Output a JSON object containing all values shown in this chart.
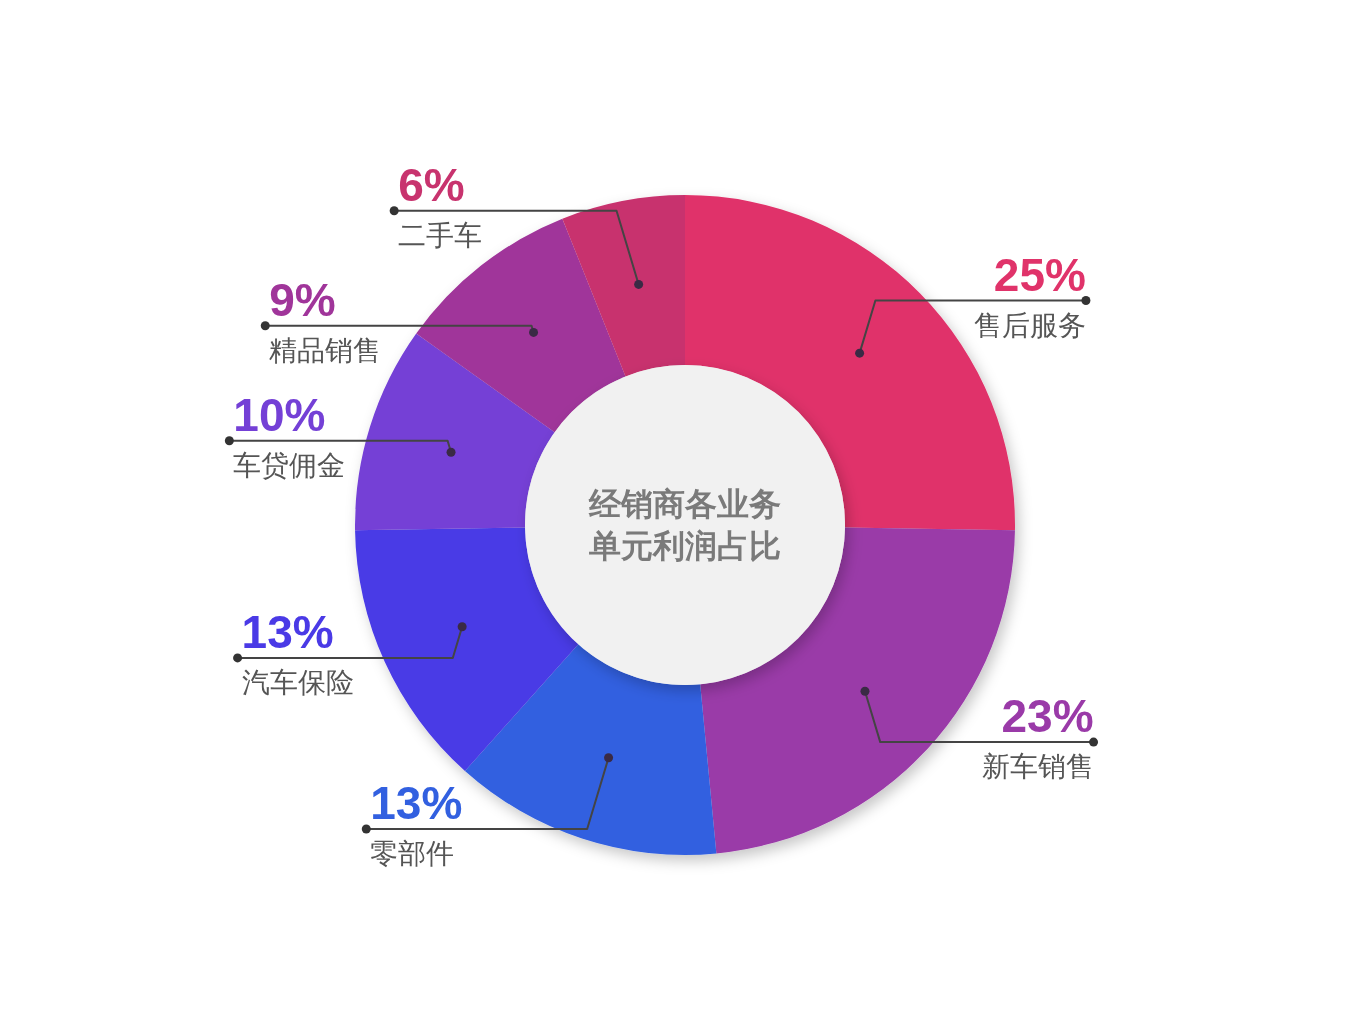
{
  "chart_data": {
    "type": "donut",
    "title": "经销商各业务单元利润占比",
    "categories": [
      "售后服务",
      "新车销售",
      "零部件",
      "汽车保险",
      "车贷佣金",
      "精品销售",
      "二手车"
    ],
    "values": [
      25,
      23,
      13,
      13,
      10,
      9,
      6
    ],
    "colors": [
      "#e0336a",
      "#9a3aa8",
      "#3260e0",
      "#4a3ae6",
      "#7440d6",
      "#a0359a",
      "#c8336e"
    ],
    "value_labels": [
      "25%",
      "23%",
      "13%",
      "13%",
      "10%",
      "9%",
      "6%"
    ]
  }
}
